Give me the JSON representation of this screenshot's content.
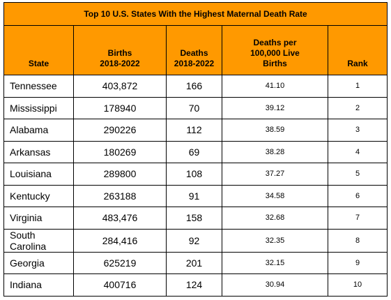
{
  "table": {
    "title": "Top 10 U.S. States With the Highest Maternal Death Rate",
    "header": [
      "State",
      "Births\n2018-2022",
      "Deaths\n2018-2022",
      "Deaths per\n100,000 Live\nBirths",
      "Rank"
    ],
    "rows": [
      [
        "Tennessee",
        "403,872",
        "166",
        "41.10",
        "1"
      ],
      [
        "Mississippi",
        "178940",
        "70",
        "39.12",
        "2"
      ],
      [
        "Alabama",
        "290226",
        "112",
        "38.59",
        "3"
      ],
      [
        "Arkansas",
        "180269",
        "69",
        "38.28",
        "4"
      ],
      [
        "Louisiana",
        "289800",
        "108",
        "37.27",
        "5"
      ],
      [
        "Kentucky",
        "263188",
        "91",
        "34.58",
        "6"
      ],
      [
        "Virginia",
        "483,476",
        "158",
        "32.68",
        "7"
      ],
      [
        "South Carolina",
        "284,416",
        "92",
        "32.35",
        "8"
      ],
      [
        "Georgia",
        "625219",
        "201",
        "32.15",
        "9"
      ],
      [
        "Indiana",
        "400716",
        "124",
        "30.94",
        "10"
      ]
    ]
  }
}
